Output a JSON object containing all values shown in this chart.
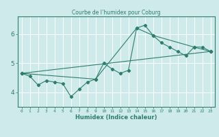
{
  "title": "Courbe de l’humidex pour Coburg",
  "xlabel": "Humidex (Indice chaleur)",
  "bg_color": "#ceeaeb",
  "grid_color": "#ffffff",
  "line_color": "#2e7d6e",
  "xlim": [
    -0.5,
    23.5
  ],
  "ylim": [
    3.5,
    6.6
  ],
  "yticks": [
    4,
    5,
    6
  ],
  "xticks": [
    0,
    1,
    2,
    3,
    4,
    5,
    6,
    7,
    8,
    9,
    10,
    11,
    12,
    13,
    14,
    15,
    16,
    17,
    18,
    19,
    20,
    21,
    22,
    23
  ],
  "series1_x": [
    0,
    1,
    2,
    3,
    4,
    5,
    6,
    7,
    8,
    9,
    10,
    11,
    12,
    13,
    14,
    15,
    16,
    17,
    18,
    19,
    20,
    21,
    22,
    23
  ],
  "series1_y": [
    4.65,
    4.55,
    4.25,
    4.4,
    4.35,
    4.3,
    3.85,
    4.1,
    4.35,
    4.45,
    5.0,
    4.8,
    4.65,
    4.75,
    6.2,
    6.3,
    5.95,
    5.7,
    5.55,
    5.4,
    5.25,
    5.55,
    5.55,
    5.4
  ],
  "series2_x": [
    0,
    9,
    14,
    16,
    21,
    23
  ],
  "series2_y": [
    4.65,
    4.45,
    6.2,
    5.95,
    5.55,
    5.4
  ],
  "series3_x": [
    0,
    23
  ],
  "series3_y": [
    4.65,
    5.4
  ]
}
